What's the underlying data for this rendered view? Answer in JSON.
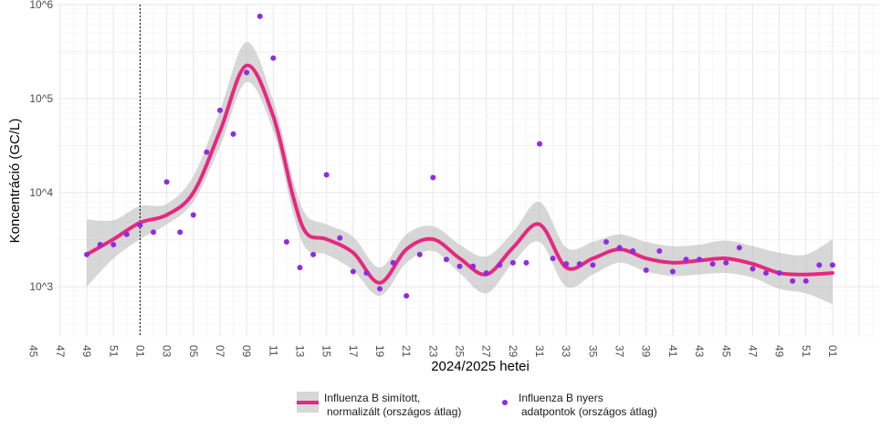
{
  "chart_data": {
    "type": "line",
    "xlabel": "2024/2025 hetei",
    "ylabel": "Koncentráció (GC/L)",
    "y_scale": "log10",
    "ylim": [
      300,
      1000000
    ],
    "y_ticks": [
      {
        "value": 1000,
        "label": "10^3"
      },
      {
        "value": 10000,
        "label": "10^4"
      },
      {
        "value": 100000,
        "label": "10^5"
      },
      {
        "value": 1000000,
        "label": "10^6"
      }
    ],
    "x_range": [
      -5.2,
      56.5
    ],
    "x_tick_step": 2,
    "x_first_tick": -7,
    "x_tick_labels": [
      "45",
      "47",
      "49",
      "51",
      "01",
      "03",
      "05",
      "07",
      "09",
      "11",
      "13",
      "15",
      "17",
      "19",
      "21",
      "23",
      "25",
      "27",
      "29",
      "31",
      "33",
      "35",
      "37",
      "39",
      "41",
      "43",
      "45",
      "47",
      "49",
      "51",
      "01"
    ],
    "vline_x": 1,
    "smoothed": {
      "name": "Influenza B simított, normalizált (országos átlag)",
      "color": "#e6287f",
      "x": [
        -3,
        -1,
        1,
        3,
        5,
        7,
        9,
        11,
        12.5,
        13.5,
        15,
        17,
        19,
        21,
        23,
        25,
        27,
        29,
        31,
        33,
        35,
        37,
        39,
        41,
        43,
        45,
        47,
        49,
        51,
        53
      ],
      "y": [
        2200,
        3200,
        4800,
        5800,
        10000,
        45000,
        225000,
        65000,
        9000,
        3700,
        3200,
        2300,
        1100,
        2500,
        3200,
        2000,
        1350,
        2600,
        4600,
        1600,
        2000,
        2500,
        2000,
        1800,
        1900,
        2000,
        1750,
        1400,
        1350,
        1400
      ],
      "ci_lower": [
        1000,
        2000,
        3200,
        4600,
        8000,
        31000,
        150000,
        45000,
        6000,
        2500,
        2200,
        1500,
        800,
        1800,
        2400,
        1400,
        850,
        1800,
        3000,
        1000,
        1350,
        1800,
        1450,
        1300,
        1350,
        1400,
        1250,
        950,
        850,
        650
      ],
      "ci_upper": [
        5200,
        5100,
        7200,
        7600,
        15000,
        75000,
        400000,
        95000,
        13500,
        5700,
        4600,
        3400,
        1600,
        3600,
        4400,
        2800,
        2100,
        3800,
        8000,
        2600,
        3000,
        3600,
        3000,
        2700,
        2800,
        3100,
        2700,
        2300,
        2200,
        3200
      ]
    },
    "raw": {
      "name": "Influenza B nyers adatpontok (országos átlag)",
      "color": "#8e2ce0",
      "x": [
        -3,
        -2,
        -1,
        0,
        1,
        2,
        3,
        4,
        5,
        6,
        7,
        8,
        9,
        10,
        11,
        12,
        13,
        14,
        15,
        16,
        17,
        18,
        19,
        20,
        21,
        22,
        23,
        24,
        25,
        26,
        27,
        28,
        29,
        30,
        31,
        32,
        33,
        34,
        35,
        36,
        37,
        38,
        39,
        40,
        41,
        42,
        43,
        44,
        45,
        46,
        47,
        48,
        49,
        50,
        51,
        52,
        53
      ],
      "y": [
        2200,
        2800,
        2800,
        3600,
        4500,
        3800,
        13000,
        3800,
        5800,
        27000,
        75000,
        42000,
        190000,
        750000,
        270000,
        3000,
        1600,
        2200,
        15500,
        3300,
        1450,
        1400,
        950,
        1800,
        800,
        2200,
        14500,
        1950,
        1650,
        1650,
        1400,
        1700,
        1800,
        1800,
        33000,
        2000,
        1750,
        1750,
        1700,
        3000,
        2600,
        2400,
        1500,
        2400,
        1450,
        1950,
        1950,
        1750,
        1800,
        2600,
        1550,
        1400,
        1400,
        1150,
        1150,
        1700,
        1700
      ]
    },
    "legend": {
      "position": "bottom",
      "smoothed_label_line1": "Influenza B simított,",
      "smoothed_label_line2": "normalizált (országos átlag)",
      "raw_label_line1": "Influenza B nyers",
      "raw_label_line2": "adatpontok (országos átlag)"
    },
    "grid": true
  }
}
